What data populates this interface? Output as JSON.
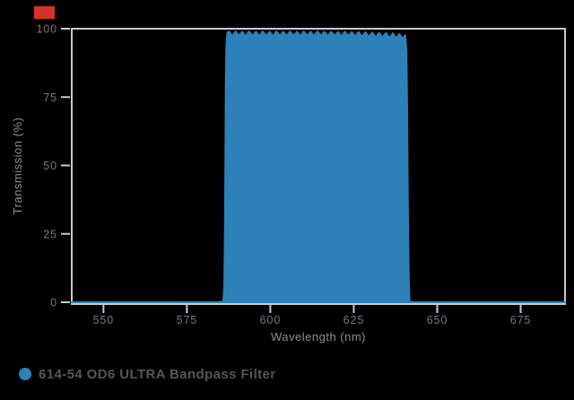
{
  "colors": {
    "background": "#000000",
    "axis_line": "#c6cad3",
    "tick_label": "#75777c",
    "axis_title": "#8b8d92",
    "legend_text": "#54565b",
    "series_fill": "#2e81b8",
    "red_marker": "#d63129"
  },
  "legend": {
    "label": "614-54 OD6 ULTRA Bandpass Filter",
    "marker_color": "#2e81b8"
  },
  "chart_data": {
    "type": "area",
    "title": "",
    "xlabel": "Wavelength (nm)",
    "ylabel": "Transmission (%)",
    "x_range": [
      540.5,
      688.3
    ],
    "y_range": [
      0,
      100
    ],
    "x_ticks": [
      550,
      575,
      600,
      625,
      650,
      675
    ],
    "y_ticks": [
      0,
      25,
      50,
      75,
      100
    ],
    "grid": false,
    "legend_position": "bottom-left",
    "series": [
      {
        "name": "614-54 OD6 ULTRA Bandpass Filter",
        "color": "#2e81b8",
        "points": [
          [
            540.5,
            0
          ],
          [
            584.5,
            0
          ],
          [
            585.9,
            0.3
          ],
          [
            586.2,
            6
          ],
          [
            586.4,
            28
          ],
          [
            586.55,
            58
          ],
          [
            586.65,
            79
          ],
          [
            586.8,
            93
          ],
          [
            587.1,
            98.5
          ],
          [
            587.6,
            99.0
          ],
          [
            588.6,
            97.3
          ],
          [
            589.6,
            99.0
          ],
          [
            590.6,
            97.4
          ],
          [
            591.6,
            98.9
          ],
          [
            592.6,
            97.2
          ],
          [
            593.6,
            99.0
          ],
          [
            594.7,
            97.4
          ],
          [
            595.7,
            98.9
          ],
          [
            596.7,
            97.3
          ],
          [
            597.7,
            99.0
          ],
          [
            598.8,
            97.4
          ],
          [
            599.8,
            98.9
          ],
          [
            600.8,
            97.2
          ],
          [
            601.8,
            99.0
          ],
          [
            602.9,
            97.4
          ],
          [
            603.9,
            98.9
          ],
          [
            604.9,
            97.3
          ],
          [
            605.9,
            99.0
          ],
          [
            607.0,
            97.4
          ],
          [
            608.0,
            98.9
          ],
          [
            609.0,
            97.2
          ],
          [
            610.0,
            99.0
          ],
          [
            611.1,
            97.4
          ],
          [
            612.1,
            98.9
          ],
          [
            613.1,
            97.3
          ],
          [
            614.1,
            99.0
          ],
          [
            615.2,
            97.4
          ],
          [
            616.2,
            98.9
          ],
          [
            617.2,
            97.2
          ],
          [
            618.2,
            98.9
          ],
          [
            619.3,
            97.4
          ],
          [
            620.3,
            98.8
          ],
          [
            621.3,
            97.2
          ],
          [
            622.3,
            98.9
          ],
          [
            623.4,
            97.3
          ],
          [
            624.4,
            98.8
          ],
          [
            625.4,
            97.2
          ],
          [
            626.4,
            98.8
          ],
          [
            627.5,
            97.1
          ],
          [
            628.5,
            98.7
          ],
          [
            629.5,
            97.0
          ],
          [
            630.5,
            98.6
          ],
          [
            631.6,
            96.9
          ],
          [
            632.6,
            98.5
          ],
          [
            633.6,
            96.8
          ],
          [
            634.6,
            98.4
          ],
          [
            635.7,
            96.6
          ],
          [
            636.7,
            98.3
          ],
          [
            637.7,
            96.5
          ],
          [
            638.7,
            98.1
          ],
          [
            639.7,
            96.3
          ],
          [
            640.4,
            97.6
          ],
          [
            640.8,
            92
          ],
          [
            641.0,
            70
          ],
          [
            641.2,
            38
          ],
          [
            641.45,
            10
          ],
          [
            641.7,
            0.4
          ],
          [
            642.6,
            0
          ],
          [
            688.3,
            0
          ]
        ]
      }
    ]
  }
}
